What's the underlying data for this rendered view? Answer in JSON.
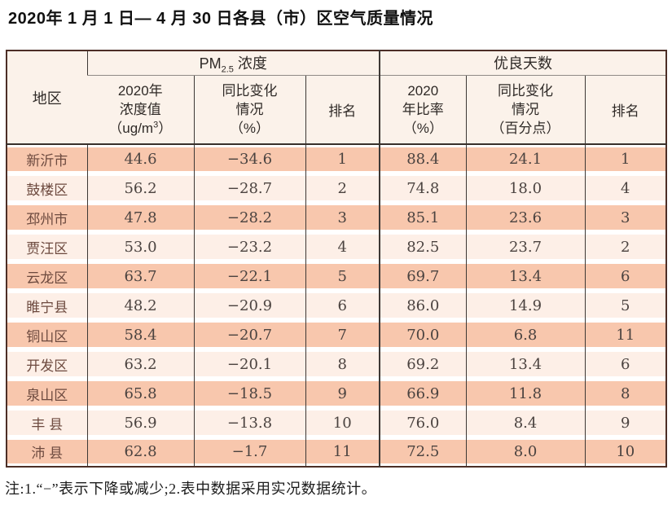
{
  "title": "2020年 1 月 1 日— 4 月 30 日各县（市）区空气质量情况",
  "header": {
    "region": "地区",
    "pm_group": {
      "prefix": "PM",
      "sub": "2.5",
      "suffix": " 浓度"
    },
    "good_group": "优良天数",
    "pm_value": {
      "l1": "2020年",
      "l2": "浓度值",
      "l3a": "（ug/m",
      "sup": "3",
      "l3b": "）"
    },
    "pm_change": {
      "l1": "同比变化",
      "l2": "情况",
      "l3": "（%）"
    },
    "pm_rank": "排名",
    "good_rate": {
      "l1": "2020",
      "l2": "年比率",
      "l3": "（%）"
    },
    "good_change": {
      "l1": "同比变化",
      "l2": "情况",
      "l3": "（百分点）"
    },
    "good_rank": "排名"
  },
  "chart_data": {
    "type": "table",
    "title": "2020年1月1日—4月30日各县（市）区空气质量情况",
    "columns": [
      "地区",
      "PM2.5浓度 2020年浓度值（ug/m3）",
      "PM2.5浓度 同比变化情况（%）",
      "PM2.5浓度 排名",
      "优良天数 2020年比率（%）",
      "优良天数 同比变化情况（百分点）",
      "优良天数 排名"
    ],
    "rows": [
      [
        "新沂市",
        "44.6",
        "−34.6",
        "1",
        "88.4",
        "24.1",
        "1"
      ],
      [
        "鼓楼区",
        "56.2",
        "−28.7",
        "2",
        "74.8",
        "18.0",
        "4"
      ],
      [
        "邳州市",
        "47.8",
        "−28.2",
        "3",
        "85.1",
        "23.6",
        "3"
      ],
      [
        "贾汪区",
        "53.0",
        "−23.2",
        "4",
        "82.5",
        "23.7",
        "2"
      ],
      [
        "云龙区",
        "63.7",
        "−22.1",
        "5",
        "69.7",
        "13.4",
        "6"
      ],
      [
        "睢宁县",
        "48.2",
        "−20.9",
        "6",
        "86.0",
        "14.9",
        "5"
      ],
      [
        "铜山区",
        "58.4",
        "−20.7",
        "7",
        "70.0",
        "6.8",
        "11"
      ],
      [
        "开发区",
        "63.2",
        "−20.1",
        "8",
        "69.2",
        "13.4",
        "6"
      ],
      [
        "泉山区",
        "65.8",
        "−18.5",
        "9",
        "66.9",
        "11.8",
        "8"
      ],
      [
        "丰 县",
        "56.9",
        "−13.8",
        "10",
        "76.0",
        "8.4",
        "9"
      ],
      [
        "沛 县",
        "62.8",
        "−1.7",
        "11",
        "72.5",
        "8.0",
        "10"
      ]
    ]
  },
  "note": "注:1.“−”表示下降或减少;2.表中数据采用实况数据统计。",
  "colors": {
    "stripe_dark": "#f8c7ad",
    "stripe_light": "#fdefe7",
    "header_bg": "#fbf2ea",
    "border_outer": "#4c2e26",
    "grid_line": "#3d3835",
    "group_underline": "#8f8a86",
    "region_text": "#6d4a3f",
    "data_text": "#4b4340",
    "title_text": "#111111"
  }
}
